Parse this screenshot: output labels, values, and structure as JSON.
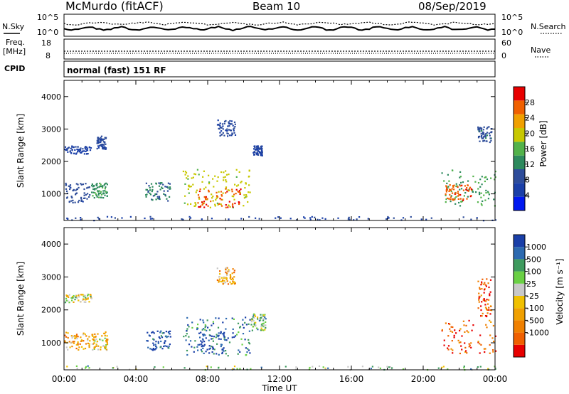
{
  "header": {
    "station": "McMurdo (fitACF)",
    "beam": "Beam 10",
    "date": "08/Sep/2019",
    "cpid_label": "CPID",
    "cpid_value": "normal (fast) 151 RF"
  },
  "top_panels": {
    "nsky_label": "N.Sky",
    "nsky_ticks": [
      "10^5",
      "10^0"
    ],
    "nsearch_label": "N.Search",
    "nsearch_ticks": [
      "10^5",
      "10^0"
    ],
    "freq_label": "Freq.",
    "freq_unit": "[MHz]",
    "freq_ticks": [
      "18",
      "8"
    ],
    "nave_label": "Nave",
    "nave_ticks": [
      "60",
      "0"
    ]
  },
  "colors": {
    "power_scale": [
      "#0018f0",
      "#1a3fa8",
      "#2d4c9a",
      "#2e8a5e",
      "#52b24a",
      "#c8c800",
      "#f0a000",
      "#f06000",
      "#e80000"
    ],
    "velocity_scale": [
      "#e80000",
      "#f06000",
      "#f08000",
      "#f0a000",
      "#f0c000",
      "#c8c8c8",
      "#6ad044",
      "#3e9a5e",
      "#2d6ab0",
      "#1a3fa8"
    ]
  },
  "chart_data": [
    {
      "type": "heatmap",
      "title": "Power",
      "xlabel": "Time UT",
      "ylabel": "Slant Range [km]",
      "xlim": [
        0,
        24
      ],
      "ylim": [
        180,
        4500
      ],
      "x_ticks": [
        "00:00",
        "04:00",
        "08:00",
        "12:00",
        "16:00",
        "20:00",
        "00:00"
      ],
      "y_ticks": [
        "1000",
        "2000",
        "3000",
        "4000"
      ],
      "colorbar_label": "Power [dB]",
      "colorbar_ticks": [
        "4",
        "8",
        "12",
        "16",
        "20",
        "24",
        "28"
      ],
      "clim": [
        0,
        32
      ],
      "blobs": [
        {
          "t": [
            0.0,
            1.4
          ],
          "r": [
            750,
            1350
          ],
          "v": 9
        },
        {
          "t": [
            1.5,
            2.4
          ],
          "r": [
            900,
            1350
          ],
          "v": 13
        },
        {
          "t": [
            4.5,
            5.9
          ],
          "r": [
            800,
            1400
          ],
          "v": 11
        },
        {
          "t": [
            6.6,
            10.4
          ],
          "r": [
            600,
            1800
          ],
          "v": 19
        },
        {
          "t": [
            7.4,
            9.9
          ],
          "r": [
            600,
            1200
          ],
          "v": 28
        },
        {
          "t": [
            21.0,
            24.0
          ],
          "r": [
            650,
            1750
          ],
          "v": 14
        },
        {
          "t": [
            21.2,
            22.7
          ],
          "r": [
            800,
            1300
          ],
          "v": 27
        },
        {
          "t": [
            0.0,
            1.5
          ],
          "r": [
            2250,
            2500
          ],
          "v": 6
        },
        {
          "t": [
            1.8,
            2.3
          ],
          "r": [
            2400,
            2800
          ],
          "v": 8
        },
        {
          "t": [
            8.5,
            9.5
          ],
          "r": [
            2800,
            3300
          ],
          "v": 8
        },
        {
          "t": [
            10.5,
            11.0
          ],
          "r": [
            2200,
            2500
          ],
          "v": 6
        },
        {
          "t": [
            23.0,
            23.8
          ],
          "r": [
            2600,
            3100
          ],
          "v": 9
        },
        {
          "t": [
            0.0,
            24.0
          ],
          "r": [
            200,
            320
          ],
          "v": 6
        }
      ]
    },
    {
      "type": "heatmap",
      "title": "Velocity",
      "xlabel": "Time UT",
      "ylabel": "Slant Range [km]",
      "xlim": [
        0,
        24
      ],
      "ylim": [
        180,
        4500
      ],
      "x_ticks": [
        "00:00",
        "04:00",
        "08:00",
        "12:00",
        "16:00",
        "20:00",
        "00:00"
      ],
      "y_ticks": [
        "1000",
        "2000",
        "3000",
        "4000"
      ],
      "colorbar_label": "Velocity [m s⁻¹]",
      "colorbar_ticks": [
        "1000",
        "500",
        "100",
        "25",
        "-25",
        "-100",
        "-500",
        "-1000"
      ],
      "blobs": [
        {
          "t": [
            0.0,
            1.4
          ],
          "r": [
            800,
            1350
          ],
          "v": 3
        },
        {
          "t": [
            1.5,
            2.4
          ],
          "r": [
            800,
            1350
          ],
          "v": 4
        },
        {
          "t": [
            4.5,
            5.9
          ],
          "r": [
            800,
            1400
          ],
          "v": 9
        },
        {
          "t": [
            6.6,
            10.4
          ],
          "r": [
            600,
            1800
          ],
          "v": 8
        },
        {
          "t": [
            7.4,
            9.0
          ],
          "r": [
            650,
            1500
          ],
          "v": 9
        },
        {
          "t": [
            10.4,
            11.2
          ],
          "r": [
            1400,
            1900
          ],
          "v": 6
        },
        {
          "t": [
            21.0,
            24.0
          ],
          "r": [
            700,
            1700
          ],
          "v": 1
        },
        {
          "t": [
            23.0,
            23.8
          ],
          "r": [
            1800,
            3000
          ],
          "v": 1
        },
        {
          "t": [
            0.0,
            1.5
          ],
          "r": [
            2250,
            2500
          ],
          "v": 5
        },
        {
          "t": [
            8.5,
            9.5
          ],
          "r": [
            2800,
            3300
          ],
          "v": 3
        },
        {
          "t": [
            0.0,
            24.0
          ],
          "r": [
            200,
            320
          ],
          "v": 6
        }
      ]
    }
  ]
}
